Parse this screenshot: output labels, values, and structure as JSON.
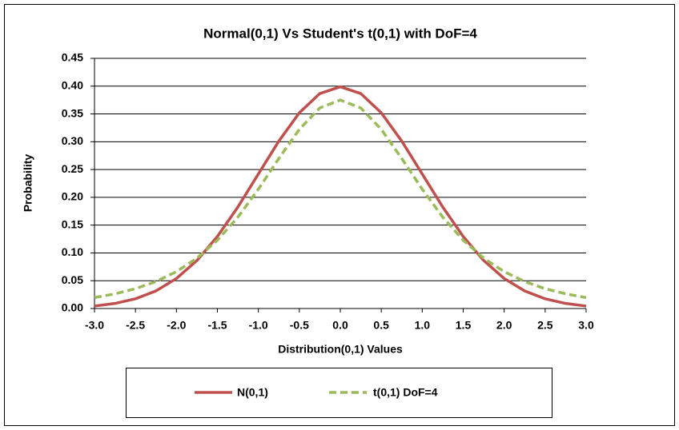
{
  "chart_data": {
    "type": "line",
    "title": "Normal(0,1) Vs Student's t(0,1) with DoF=4",
    "x_label": "Distribution(0,1) Values",
    "y_label": "Probability",
    "x": [
      -3,
      -2.75,
      -2.5,
      -2.25,
      -2,
      -1.75,
      -1.5,
      -1.25,
      -1,
      -0.75,
      -0.5,
      -0.25,
      0,
      0.25,
      0.5,
      0.75,
      1,
      1.25,
      1.5,
      1.75,
      2,
      2.25,
      2.5,
      2.75,
      3
    ],
    "series": [
      {
        "name": "N(0,1)",
        "color": "#c0504d",
        "dash": false,
        "values": [
          0.0044,
          0.0091,
          0.0175,
          0.0317,
          0.054,
          0.0863,
          0.1295,
          0.1826,
          0.242,
          0.3011,
          0.3521,
          0.3867,
          0.3989,
          0.3867,
          0.3521,
          0.3011,
          0.242,
          0.1826,
          0.1295,
          0.0863,
          0.054,
          0.0317,
          0.0175,
          0.0091,
          0.0044
        ]
      },
      {
        "name": "t(0,1) DoF=4",
        "color": "#9bbb59",
        "dash": true,
        "values": [
          0.0197,
          0.0264,
          0.0357,
          0.0485,
          0.0663,
          0.0905,
          0.1229,
          0.1644,
          0.2147,
          0.2699,
          0.3223,
          0.3608,
          0.375,
          0.3608,
          0.3223,
          0.2699,
          0.2147,
          0.1644,
          0.1229,
          0.0905,
          0.0663,
          0.0485,
          0.0357,
          0.0264,
          0.0197
        ]
      }
    ],
    "xlim": [
      -3,
      3
    ],
    "xticks": [
      {
        "value": -3,
        "label": "-3.0"
      },
      {
        "value": -2.5,
        "label": "-2.5"
      },
      {
        "value": -2,
        "label": "-2.0"
      },
      {
        "value": -1.5,
        "label": "-1.5"
      },
      {
        "value": -1,
        "label": "-1.0"
      },
      {
        "value": -0.5,
        "label": "-0.5"
      },
      {
        "value": 0,
        "label": "0.0"
      },
      {
        "value": 0.5,
        "label": "0.5"
      },
      {
        "value": 1,
        "label": "1.0"
      },
      {
        "value": 1.5,
        "label": "1.5"
      },
      {
        "value": 2,
        "label": "2.0"
      },
      {
        "value": 2.5,
        "label": "2.5"
      },
      {
        "value": 3,
        "label": "3.0"
      }
    ],
    "ylim": [
      0,
      0.45
    ],
    "yticks": [
      {
        "value": 0,
        "label": "0.00"
      },
      {
        "value": 0.05,
        "label": "0.05"
      },
      {
        "value": 0.1,
        "label": "0.10"
      },
      {
        "value": 0.15,
        "label": "0.15"
      },
      {
        "value": 0.2,
        "label": "0.20"
      },
      {
        "value": 0.25,
        "label": "0.25"
      },
      {
        "value": 0.3,
        "label": "0.30"
      },
      {
        "value": 0.35,
        "label": "0.35"
      },
      {
        "value": 0.4,
        "label": "0.40"
      },
      {
        "value": 0.45,
        "label": "0.45"
      }
    ],
    "grid": true,
    "legend": "bottom"
  }
}
